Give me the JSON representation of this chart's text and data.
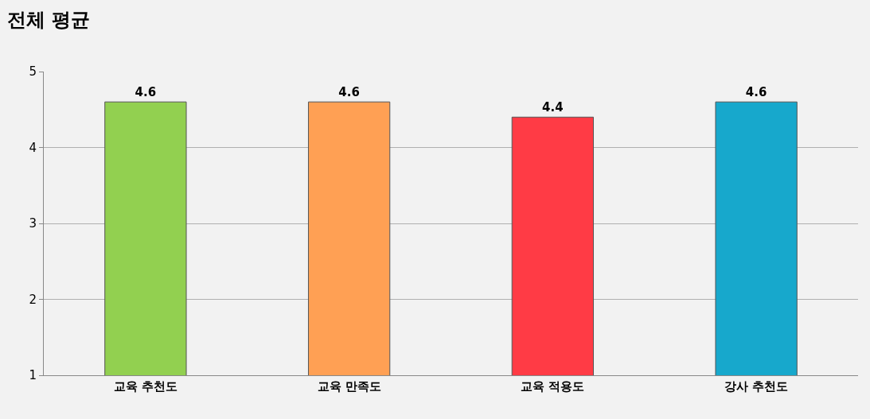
{
  "chart_data": {
    "type": "bar",
    "title": "전체 평균",
    "categories": [
      "교육 추천도",
      "교육 만족도",
      "교육 적용도",
      "강사 추천도"
    ],
    "values": [
      4.6,
      4.6,
      4.4,
      4.6
    ],
    "colors": [
      "#92d050",
      "#ffa054",
      "#ff3b45",
      "#17a8cc"
    ],
    "ylim": [
      1,
      5
    ],
    "yticks": [
      1,
      2,
      3,
      4,
      5
    ],
    "grid": "y",
    "data_labels": true
  }
}
